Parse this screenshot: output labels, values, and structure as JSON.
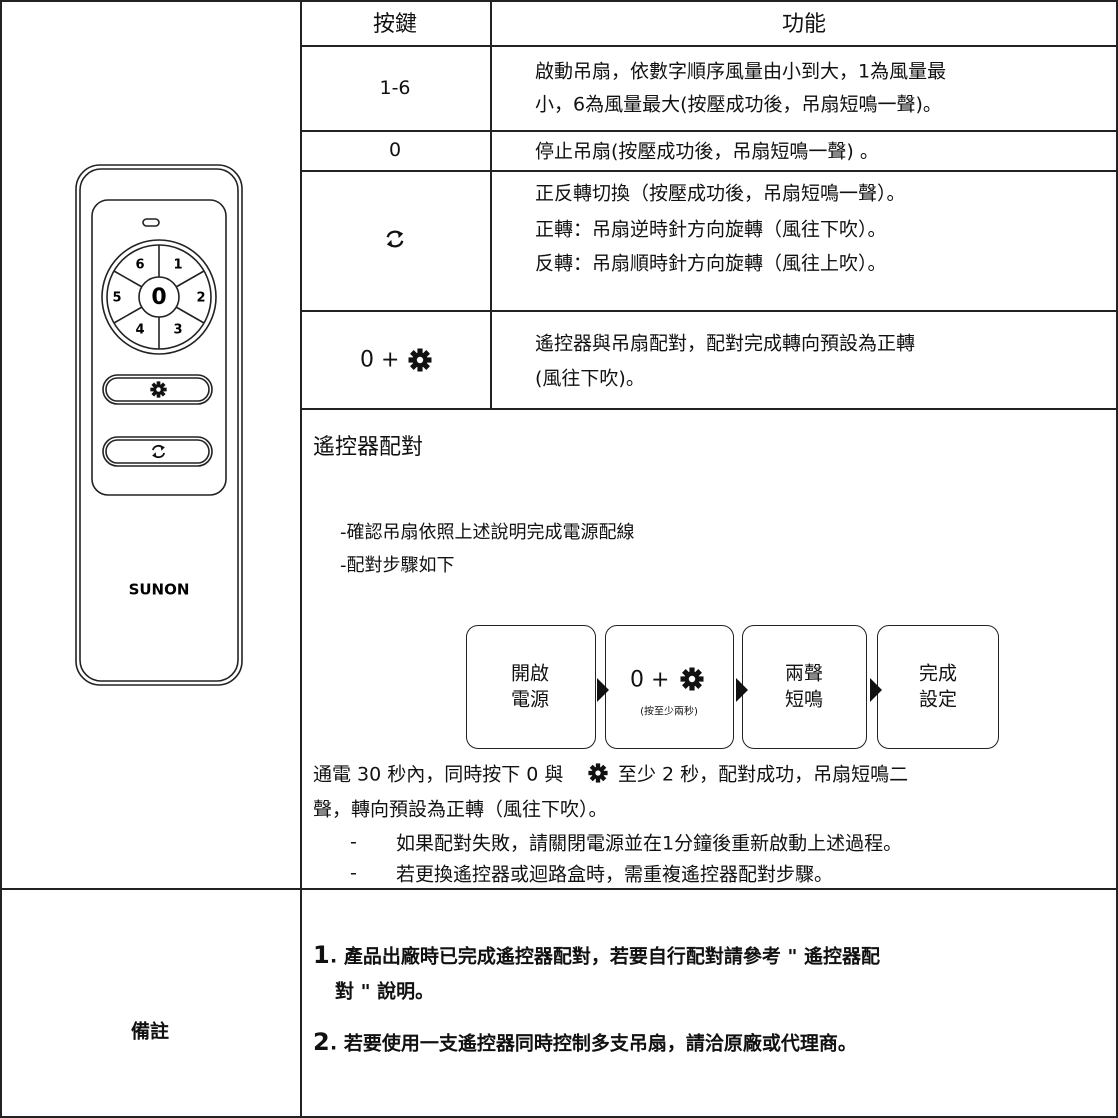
{
  "remote": {
    "buttons": [
      "6",
      "1",
      "5",
      "0",
      "2",
      "4",
      "3"
    ],
    "brand": "SUNON"
  },
  "key_table": {
    "headers": [
      "按鍵",
      "功能"
    ],
    "rows": [
      {
        "key": "1-6",
        "function": [
          "啟動吊扇，依數字順序風量由小到大，1為風量最",
          "小，6為風量最大(按壓成功後，吊扇短鳴一聲)。"
        ]
      },
      {
        "key": "0",
        "function": [
          "停止吊扇(按壓成功後，吊扇短鳴一聲) 。"
        ]
      },
      {
        "function": [
          "正反轉切換（按壓成功後，吊扇短鳴一聲）。",
          "正轉：吊扇逆時針方向旋轉（風往下吹）。",
          "反轉：吊扇順時針方向旋轉（風往上吹）。"
        ]
      },
      {
        "key": "0 +",
        "function": [
          "遙控器與吊扇配對，配對完成轉向預設為正轉",
          "(風往下吹)。"
        ]
      }
    ]
  },
  "pairing": {
    "title": "遙控器配對",
    "steps": [
      "-確認吊扇依照上述說明完成電源配線",
      "-配對步驟如下"
    ],
    "flow": [
      {
        "lines": [
          "開啟",
          "電源"
        ]
      },
      {
        "lines": [
          "0 +"
        ],
        "note": "(按至少兩秒)"
      },
      {
        "lines": [
          "兩聲",
          "短鳴"
        ]
      },
      {
        "lines": [
          "完成",
          "設定"
        ]
      }
    ],
    "paragraph": [
      "通電 30 秒內，同時按下 0 與",
      "至少 2 秒，配對成功，吊扇短鳴二",
      "聲，轉向預設為正轉（風往下吹）。"
    ],
    "bullets": [
      {
        "mark": "-",
        "text": "如果配對失敗，請關閉電源並在1分鐘後重新啟動上述過程。"
      },
      {
        "mark": "-",
        "text": "若更換遙控器或迴路盒時，需重複遙控器配對步驟。"
      }
    ]
  },
  "notes": {
    "label": "備註",
    "items": [
      {
        "number": "1",
        "lines": [
          ". 產品出廠時已完成遙控器配對，若要自行配對請參考 \" 遙控器配",
          "對 \" 說明。"
        ]
      },
      {
        "number": "2",
        "lines": [
          ". 若要使用一支遙控器同時控制多支吊扇，請洽原廠或代理商。"
        ]
      }
    ]
  }
}
